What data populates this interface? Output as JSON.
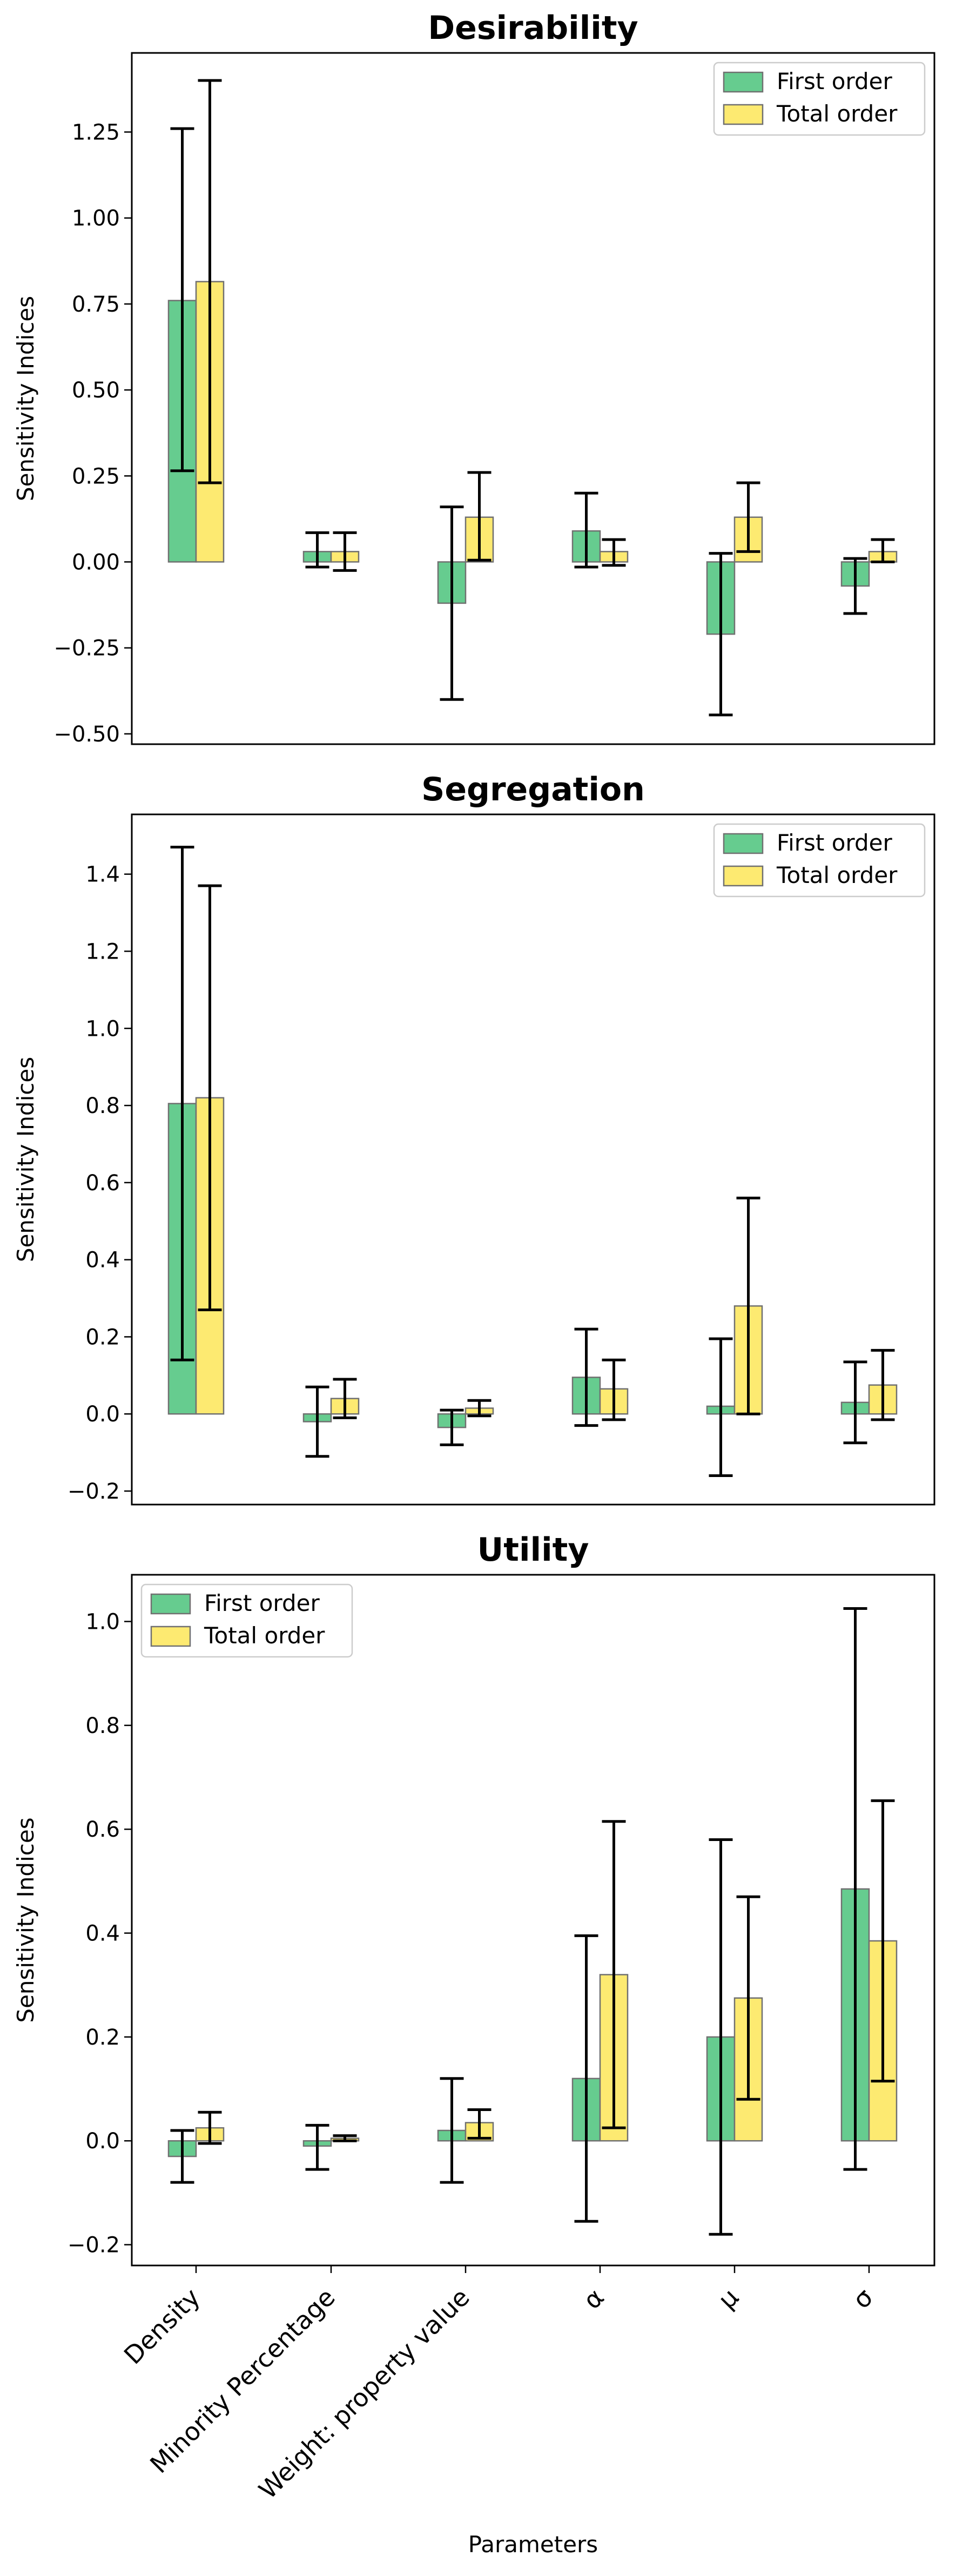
{
  "chart_data": [
    {
      "type": "bar",
      "title": "Desirability",
      "ylabel": "Sensitivity Indices",
      "xlabel": "",
      "ylim": [
        -0.53,
        1.48
      ],
      "yticks": [
        -0.5,
        -0.25,
        0.0,
        0.25,
        0.5,
        0.75,
        1.0,
        1.25
      ],
      "ytick_labels": [
        "−0.50",
        "−0.25",
        "0.00",
        "0.25",
        "0.50",
        "0.75",
        "1.00",
        "1.25"
      ],
      "legend_position": "top-right",
      "categories": [
        "Density",
        "Minority Percentage",
        "Weight: property value",
        "α",
        "μ",
        "σ"
      ],
      "series": [
        {
          "name": "First order",
          "color": "#66cc8f",
          "values": [
            0.76,
            0.03,
            -0.12,
            0.09,
            -0.21,
            -0.07
          ],
          "err_low": [
            0.265,
            -0.015,
            -0.4,
            -0.015,
            -0.445,
            -0.15
          ],
          "err_high": [
            1.26,
            0.085,
            0.16,
            0.2,
            0.025,
            0.01
          ]
        },
        {
          "name": "Total order",
          "color": "#fdea71",
          "values": [
            0.815,
            0.03,
            0.13,
            0.03,
            0.13,
            0.03
          ],
          "err_low": [
            0.23,
            -0.025,
            0.005,
            -0.01,
            0.03,
            0.0
          ],
          "err_high": [
            1.4,
            0.085,
            0.26,
            0.065,
            0.23,
            0.065
          ]
        }
      ]
    },
    {
      "type": "bar",
      "title": "Segregation",
      "ylabel": "Sensitivity Indices",
      "xlabel": "",
      "ylim": [
        -0.235,
        1.555
      ],
      "yticks": [
        -0.2,
        0.0,
        0.2,
        0.4,
        0.6,
        0.8,
        1.0,
        1.2,
        1.4
      ],
      "ytick_labels": [
        "−0.2",
        "0.0",
        "0.2",
        "0.4",
        "0.6",
        "0.8",
        "1.0",
        "1.2",
        "1.4"
      ],
      "legend_position": "top-right",
      "categories": [
        "Density",
        "Minority Percentage",
        "Weight: property value",
        "α",
        "μ",
        "σ"
      ],
      "series": [
        {
          "name": "First order",
          "color": "#66cc8f",
          "values": [
            0.805,
            -0.02,
            -0.035,
            0.095,
            0.02,
            0.03
          ],
          "err_low": [
            0.14,
            -0.11,
            -0.08,
            -0.03,
            -0.16,
            -0.075
          ],
          "err_high": [
            1.47,
            0.07,
            0.01,
            0.22,
            0.195,
            0.135
          ]
        },
        {
          "name": "Total order",
          "color": "#fdea71",
          "values": [
            0.82,
            0.04,
            0.015,
            0.065,
            0.28,
            0.075
          ],
          "err_low": [
            0.27,
            -0.01,
            -0.005,
            -0.015,
            0.0,
            -0.015
          ],
          "err_high": [
            1.37,
            0.09,
            0.035,
            0.14,
            0.56,
            0.165
          ]
        }
      ]
    },
    {
      "type": "bar",
      "title": "Utility",
      "ylabel": "Sensitivity Indices",
      "xlabel": "Parameters",
      "ylim": [
        -0.24,
        1.09
      ],
      "yticks": [
        -0.2,
        0.0,
        0.2,
        0.4,
        0.6,
        0.8,
        1.0
      ],
      "ytick_labels": [
        "−0.2",
        "0.0",
        "0.2",
        "0.4",
        "0.6",
        "0.8",
        "1.0"
      ],
      "legend_position": "top-left",
      "categories": [
        "Density",
        "Minority Percentage",
        "Weight: property value",
        "α",
        "μ",
        "σ"
      ],
      "series": [
        {
          "name": "First order",
          "color": "#66cc8f",
          "values": [
            -0.03,
            -0.01,
            0.02,
            0.12,
            0.2,
            0.485
          ],
          "err_low": [
            -0.08,
            -0.055,
            -0.08,
            -0.155,
            -0.18,
            -0.055
          ],
          "err_high": [
            0.02,
            0.03,
            0.12,
            0.395,
            0.58,
            1.025
          ]
        },
        {
          "name": "Total order",
          "color": "#fdea71",
          "values": [
            0.025,
            0.005,
            0.035,
            0.32,
            0.275,
            0.385
          ],
          "err_low": [
            -0.005,
            0.0,
            0.005,
            0.025,
            0.08,
            0.115
          ],
          "err_high": [
            0.055,
            0.01,
            0.06,
            0.615,
            0.47,
            0.655
          ]
        }
      ]
    }
  ]
}
